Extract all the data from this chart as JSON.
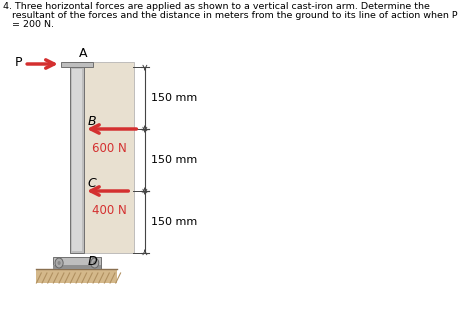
{
  "title_line1": "4. Three horizontal forces are applied as shown to a vertical cast-iron arm. Determine the",
  "title_line2": "   resultant of the forces and the distance in meters from the ground to its line of action when P",
  "title_line3": "   = 200 N.",
  "bg_color": "#ffffff",
  "arm_color": "#bebebe",
  "arm_inner": "#d8d8d8",
  "arm_dark": "#909090",
  "ground_color": "#d4b88a",
  "ground_line": "#b09060",
  "arrow_color": "#d43030",
  "dim_line_color": "#444444",
  "forces": [
    "600 N",
    "400 N"
  ],
  "dims": [
    "150 mm",
    "150 mm",
    "150 mm"
  ],
  "font_size": 8
}
